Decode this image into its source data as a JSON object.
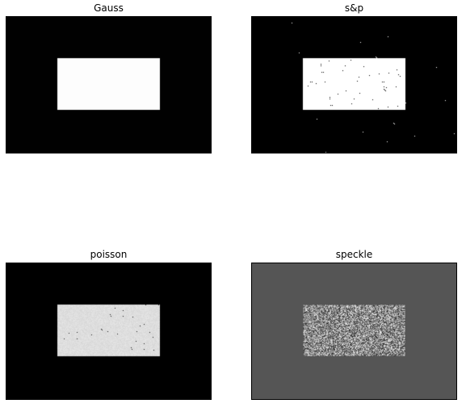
{
  "figure": {
    "background": "#ffffff",
    "panels": [
      {
        "title": "Gauss",
        "noise": "gaussian",
        "colors": {
          "background": "#000000",
          "foreground": "#ffffff"
        },
        "framed": false
      },
      {
        "title": "s&p",
        "noise": "salt-and-pepper",
        "colors": {
          "background": "#000000",
          "foreground": "#ffffff"
        },
        "framed": false
      },
      {
        "title": "poisson",
        "noise": "poisson",
        "colors": {
          "background": "#000000",
          "foreground": "#dedede"
        },
        "framed": false
      },
      {
        "title": "speckle",
        "noise": "speckle",
        "colors": {
          "background": "#555555",
          "foreground": "#8a8a8a"
        },
        "framed": true
      }
    ]
  }
}
